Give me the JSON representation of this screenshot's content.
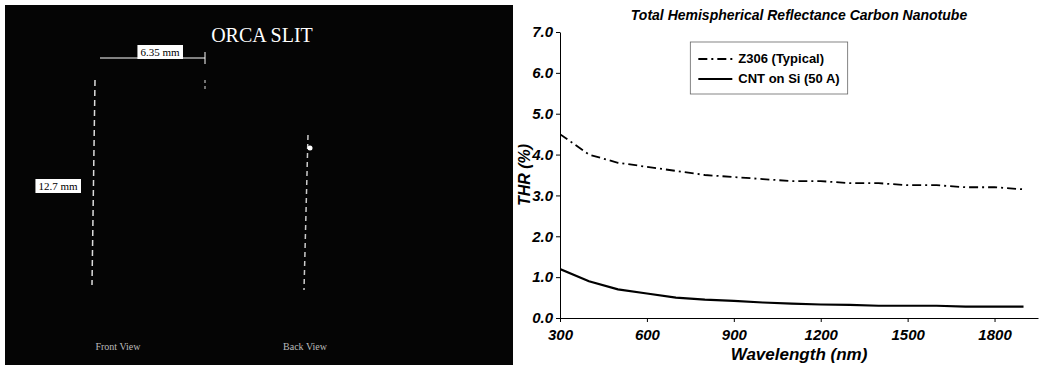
{
  "photo": {
    "title": "ORCA SLIT",
    "width_label": "6.35 mm",
    "height_label": "12.7 mm",
    "views": [
      "Front View",
      "Back View"
    ]
  },
  "chart_data": {
    "type": "line",
    "title": "Total Hemispherical Reflectance Carbon Nanotube",
    "x_label": "Wavelength (nm)",
    "y_label": "THR (%)",
    "x": [
      300,
      400,
      500,
      600,
      700,
      800,
      900,
      1000,
      1100,
      1200,
      1300,
      1400,
      1500,
      1600,
      1700,
      1800,
      1900
    ],
    "series": [
      {
        "name": "Z306 (Typical)",
        "color": "#000000",
        "line_style": "dashdot",
        "values": [
          4.5,
          4.0,
          3.8,
          3.7,
          3.6,
          3.5,
          3.45,
          3.4,
          3.35,
          3.35,
          3.3,
          3.3,
          3.25,
          3.25,
          3.2,
          3.2,
          3.15
        ]
      },
      {
        "name": "CNT on Si (50 A)",
        "color": "#000000",
        "line_style": "solid",
        "values": [
          1.2,
          0.9,
          0.7,
          0.6,
          0.5,
          0.45,
          0.42,
          0.38,
          0.35,
          0.33,
          0.32,
          0.3,
          0.3,
          0.3,
          0.28,
          0.28,
          0.28
        ]
      }
    ],
    "xlim": [
      300,
      1950
    ],
    "xticks": [
      300,
      600,
      900,
      1200,
      1500,
      1800
    ],
    "ylim": [
      0,
      7
    ],
    "yticks": [
      {
        "value": 0,
        "label": "0.0"
      },
      {
        "value": 1,
        "label": "1.0"
      },
      {
        "value": 2,
        "label": "2.0"
      },
      {
        "value": 3,
        "label": "3.0"
      },
      {
        "value": 4,
        "label": "4.0"
      },
      {
        "value": 5,
        "label": "5.0"
      },
      {
        "value": 6,
        "label": "6.0"
      },
      {
        "value": 7,
        "label": "7.0"
      }
    ],
    "grid": false,
    "legend": "top"
  }
}
